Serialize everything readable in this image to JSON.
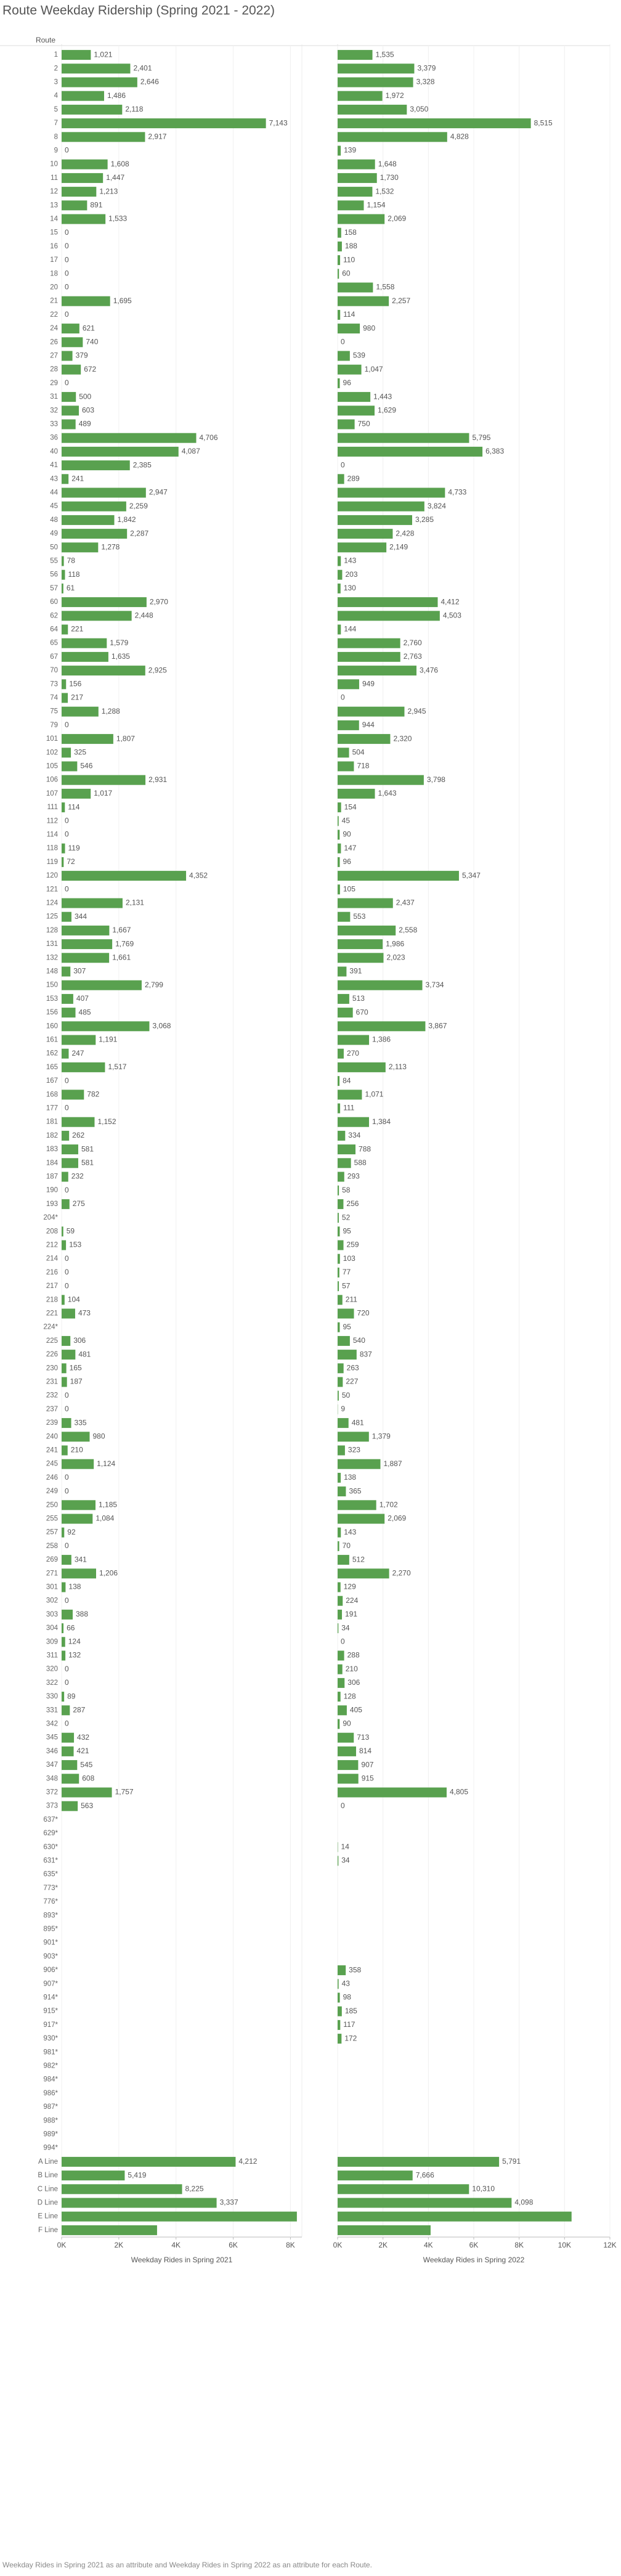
{
  "chart_data": {
    "type": "bar",
    "title": "Route Weekday Ridership (Spring 2021 - 2022)",
    "category_header": "Route",
    "footnote": "Weekday Rides in Spring 2021 as an attribute and Weekday Rides in Spring 2022 as an attribute for each Route.",
    "grid": true,
    "categories": [
      "1",
      "2",
      "3",
      "4",
      "5",
      "7",
      "8",
      "9",
      "10",
      "11",
      "12",
      "13",
      "14",
      "15",
      "16",
      "17",
      "18",
      "20",
      "21",
      "22",
      "24",
      "26",
      "27",
      "28",
      "29",
      "31",
      "32",
      "33",
      "36",
      "40",
      "41",
      "43",
      "44",
      "45",
      "48",
      "49",
      "50",
      "55",
      "56",
      "57",
      "60",
      "62",
      "64",
      "65",
      "67",
      "70",
      "73",
      "74",
      "75",
      "79",
      "101",
      "102",
      "105",
      "106",
      "107",
      "111",
      "112",
      "114",
      "118",
      "119",
      "120",
      "121",
      "124",
      "125",
      "128",
      "131",
      "132",
      "148",
      "150",
      "153",
      "156",
      "160",
      "161",
      "162",
      "165",
      "167",
      "168",
      "177",
      "181",
      "182",
      "183",
      "184",
      "187",
      "190",
      "193",
      "204*",
      "208",
      "212",
      "214",
      "216",
      "217",
      "218",
      "221",
      "224*",
      "225",
      "226",
      "230",
      "231",
      "232",
      "237",
      "239",
      "240",
      "241",
      "245",
      "246",
      "249",
      "250",
      "255",
      "257",
      "258",
      "269",
      "271",
      "301",
      "302",
      "303",
      "304",
      "309",
      "311",
      "320",
      "322",
      "330",
      "331",
      "342",
      "345",
      "346",
      "347",
      "348",
      "372",
      "373",
      "637*",
      "629*",
      "630*",
      "631*",
      "635*",
      "773*",
      "776*",
      "893*",
      "895*",
      "901*",
      "903*",
      "906*",
      "907*",
      "914*",
      "915*",
      "917*",
      "930*",
      "981*",
      "982*",
      "984*",
      "986*",
      "987*",
      "988*",
      "989*",
      "994*",
      "A Line",
      "B Line",
      "C Line",
      "D Line",
      "E Line",
      "F Line"
    ],
    "series": [
      {
        "name": "Weekday Rides in Spring 2021",
        "color": "#59a14f",
        "xlim": [
          0,
          8400
        ],
        "xticks": [
          {
            "value": 0,
            "label": "0K"
          },
          {
            "value": 2000,
            "label": "2K"
          },
          {
            "value": 4000,
            "label": "4K"
          },
          {
            "value": 6000,
            "label": "6K"
          },
          {
            "value": 8000,
            "label": "8K"
          }
        ],
        "values": [
          1021,
          2401,
          2646,
          1486,
          2118,
          7143,
          2917,
          0,
          1608,
          1447,
          1213,
          891,
          1533,
          0,
          0,
          0,
          0,
          0,
          1695,
          0,
          621,
          740,
          379,
          672,
          0,
          500,
          603,
          489,
          4706,
          4087,
          2385,
          241,
          2947,
          2259,
          1842,
          2287,
          1278,
          78,
          118,
          61,
          2970,
          2448,
          221,
          1579,
          1635,
          2925,
          156,
          217,
          1288,
          0,
          1807,
          325,
          546,
          2931,
          1017,
          114,
          0,
          0,
          119,
          72,
          4352,
          0,
          2131,
          344,
          1667,
          1769,
          1661,
          307,
          2799,
          407,
          485,
          3068,
          1191,
          247,
          1517,
          0,
          782,
          0,
          1152,
          262,
          581,
          581,
          232,
          0,
          275,
          null,
          59,
          153,
          0,
          0,
          0,
          104,
          473,
          null,
          306,
          481,
          165,
          187,
          0,
          0,
          335,
          980,
          210,
          1124,
          0,
          0,
          1185,
          1084,
          92,
          0,
          341,
          1206,
          138,
          0,
          388,
          66,
          124,
          132,
          0,
          0,
          89,
          287,
          0,
          432,
          421,
          545,
          608,
          1757,
          563,
          null,
          null,
          null,
          null,
          null,
          null,
          null,
          null,
          null,
          null,
          null,
          null,
          null,
          null,
          null,
          null,
          null,
          null,
          null,
          null,
          null,
          null,
          null,
          null,
          null,
          6083,
          2206,
          4212,
          5419,
          8225,
          3337
        ],
        "value_labels": [
          "1,021",
          "2,401",
          "2,646",
          "1,486",
          "2,118",
          "7,143",
          "2,917",
          null,
          "1,608",
          "1,447",
          "1,213",
          null,
          "1,533",
          null,
          null,
          null,
          null,
          null,
          "1,695",
          null,
          null,
          null,
          null,
          null,
          null,
          null,
          null,
          null,
          "4,706",
          "4,087",
          "2,385",
          null,
          "2,947",
          "2,259",
          "1,842",
          "2,287",
          "1,278",
          null,
          null,
          null,
          "2,970",
          "2,448",
          null,
          "1,579",
          "1,635",
          "2,925",
          null,
          null,
          "1,288",
          null,
          "1,807",
          null,
          null,
          "2,931",
          "1,017",
          null,
          null,
          null,
          null,
          null,
          "4,352",
          null,
          "2,131",
          null,
          "1,667",
          "1,769",
          "1,661",
          null,
          "2,799",
          null,
          null,
          "3,068",
          "1,191",
          null,
          "1,517",
          null,
          null,
          null,
          "1,152",
          null,
          null,
          null,
          null,
          null,
          null,
          null,
          null,
          null,
          null,
          null,
          null,
          null,
          null,
          null,
          null,
          null,
          null,
          null,
          null,
          null,
          null,
          null,
          null,
          "1,124",
          null,
          null,
          "1,185",
          "1,084",
          null,
          null,
          null,
          "1,206",
          null,
          null,
          null,
          null,
          null,
          null,
          null,
          null,
          null,
          null,
          null,
          null,
          null,
          null,
          null,
          "1,757",
          null,
          null,
          null,
          null,
          null,
          null,
          null,
          null,
          null,
          null,
          null,
          null,
          null,
          null,
          null,
          null,
          null,
          null,
          null,
          null,
          null,
          null,
          null,
          null,
          "6,083",
          "2,206",
          "4,212",
          "5,419",
          "8,225",
          "3,337"
        ]
      },
      {
        "name": "Weekday Rides in Spring 2022",
        "color": "#59a14f",
        "xlim": [
          0,
          12000
        ],
        "xticks": [
          {
            "value": 0,
            "label": "0K"
          },
          {
            "value": 2000,
            "label": "2K"
          },
          {
            "value": 4000,
            "label": "4K"
          },
          {
            "value": 6000,
            "label": "6K"
          },
          {
            "value": 8000,
            "label": "8K"
          },
          {
            "value": 10000,
            "label": "10K"
          },
          {
            "value": 12000,
            "label": "12K"
          }
        ],
        "values": [
          1535,
          3379,
          3328,
          1972,
          3050,
          8515,
          4828,
          139,
          1648,
          1730,
          1532,
          1154,
          2069,
          158,
          188,
          110,
          60,
          1558,
          2257,
          114,
          980,
          0,
          539,
          1047,
          96,
          1443,
          1629,
          750,
          5795,
          6383,
          0,
          289,
          4733,
          3824,
          3285,
          2428,
          2149,
          143,
          203,
          130,
          4412,
          4503,
          144,
          2760,
          2763,
          3476,
          949,
          0,
          2945,
          944,
          2320,
          504,
          718,
          3798,
          1643,
          154,
          45,
          90,
          147,
          96,
          5347,
          105,
          2437,
          553,
          2558,
          1986,
          2023,
          391,
          3734,
          513,
          670,
          3867,
          1386,
          270,
          2113,
          84,
          1071,
          111,
          1384,
          334,
          788,
          588,
          293,
          58,
          256,
          52,
          95,
          259,
          103,
          77,
          57,
          211,
          720,
          95,
          540,
          837,
          263,
          227,
          50,
          9,
          481,
          1379,
          323,
          1887,
          138,
          365,
          1702,
          2069,
          143,
          70,
          512,
          2270,
          129,
          224,
          191,
          34,
          0,
          288,
          210,
          306,
          128,
          405,
          90,
          713,
          814,
          907,
          915,
          4805,
          0,
          null,
          null,
          14,
          34,
          null,
          null,
          null,
          null,
          null,
          null,
          null,
          358,
          43,
          98,
          185,
          117,
          172,
          null,
          null,
          null,
          null,
          null,
          null,
          null,
          null,
          7116,
          3305,
          5791,
          7666,
          10310,
          4098
        ],
        "value_labels": [
          "1,535",
          "3,379",
          "3,328",
          "1,972",
          "3,050",
          "8,515",
          "4,828",
          null,
          "1,648",
          "1,730",
          "1,532",
          "1,154",
          "2,069",
          null,
          null,
          null,
          null,
          "1,558",
          "2,257",
          null,
          null,
          null,
          null,
          "1,047",
          null,
          "1,443",
          "1,629",
          null,
          "5,795",
          "6,383",
          null,
          null,
          "4,733",
          "3,824",
          "3,285",
          "2,428",
          "2,149",
          null,
          null,
          null,
          "4,412",
          "4,503",
          null,
          "2,760",
          "2,763",
          "3,476",
          null,
          null,
          "2,945",
          null,
          "2,320",
          null,
          null,
          "3,798",
          "1,643",
          null,
          null,
          null,
          null,
          null,
          "5,347",
          null,
          "2,437",
          null,
          "2,558",
          "1,986",
          "2,023",
          null,
          "3,734",
          null,
          null,
          "3,867",
          "1,386",
          null,
          "2,113",
          null,
          "1,071",
          null,
          "1,384",
          null,
          null,
          null,
          null,
          null,
          null,
          null,
          null,
          null,
          null,
          null,
          null,
          null,
          null,
          null,
          null,
          null,
          null,
          null,
          null,
          null,
          null,
          "1,379",
          null,
          "1,887",
          null,
          null,
          "1,702",
          "2,069",
          null,
          null,
          null,
          "2,270",
          null,
          null,
          null,
          null,
          null,
          null,
          null,
          null,
          null,
          null,
          null,
          null,
          null,
          null,
          null,
          "4,805",
          null,
          null,
          null,
          null,
          null,
          null,
          null,
          null,
          null,
          null,
          null,
          null,
          null,
          null,
          null,
          null,
          null,
          null,
          null,
          null,
          null,
          null,
          null,
          null,
          "7,116",
          "3,305",
          "5,791",
          "7,666",
          "10,310",
          "4,098"
        ]
      }
    ]
  }
}
